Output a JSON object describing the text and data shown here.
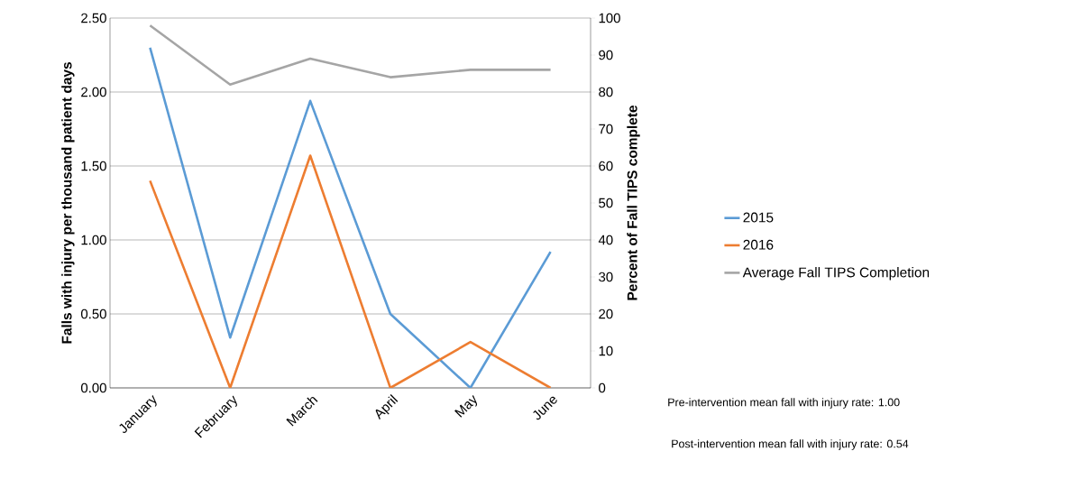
{
  "chart_data": {
    "type": "line",
    "ylabel": "Falls with injury per thousand patient days",
    "y2label": "Percent of Fall TIPS complete",
    "categories": [
      "January",
      "February",
      "March",
      "April",
      "May",
      "June"
    ],
    "series": [
      {
        "name": "2015",
        "color": "#5b9bd5",
        "values": [
          2.3,
          0.34,
          1.94,
          0.5,
          0.0,
          0.92
        ]
      },
      {
        "name": "2016",
        "color": "#ed7d31",
        "values": [
          1.4,
          0.0,
          1.57,
          0.0,
          0.31,
          0.0
        ]
      },
      {
        "name": "Average Fall TIPS Completion",
        "color": "#a5a5a5",
        "axis": "y2",
        "values": [
          98,
          82,
          89,
          84,
          86,
          86
        ]
      }
    ],
    "ylim": [
      0,
      2.5
    ],
    "yticks": [
      {
        "value": 0,
        "label": "0.00"
      },
      {
        "value": 0.5,
        "label": "0.50"
      },
      {
        "value": 1,
        "label": "1.00"
      },
      {
        "value": 1.5,
        "label": "1.50"
      },
      {
        "value": 2,
        "label": "2.00"
      },
      {
        "value": 2.5,
        "label": "2.50"
      }
    ],
    "y2lim": [
      0,
      100
    ],
    "y2ticks": [
      0,
      10,
      20,
      30,
      40,
      50,
      60,
      70,
      80,
      90,
      100
    ],
    "grid": "y",
    "legend": "right",
    "annotations": [
      "Pre-intervention  mean fall with injury  rate: 1.00",
      "Post-intervention  mean fall with injury rate: 0.54"
    ]
  }
}
